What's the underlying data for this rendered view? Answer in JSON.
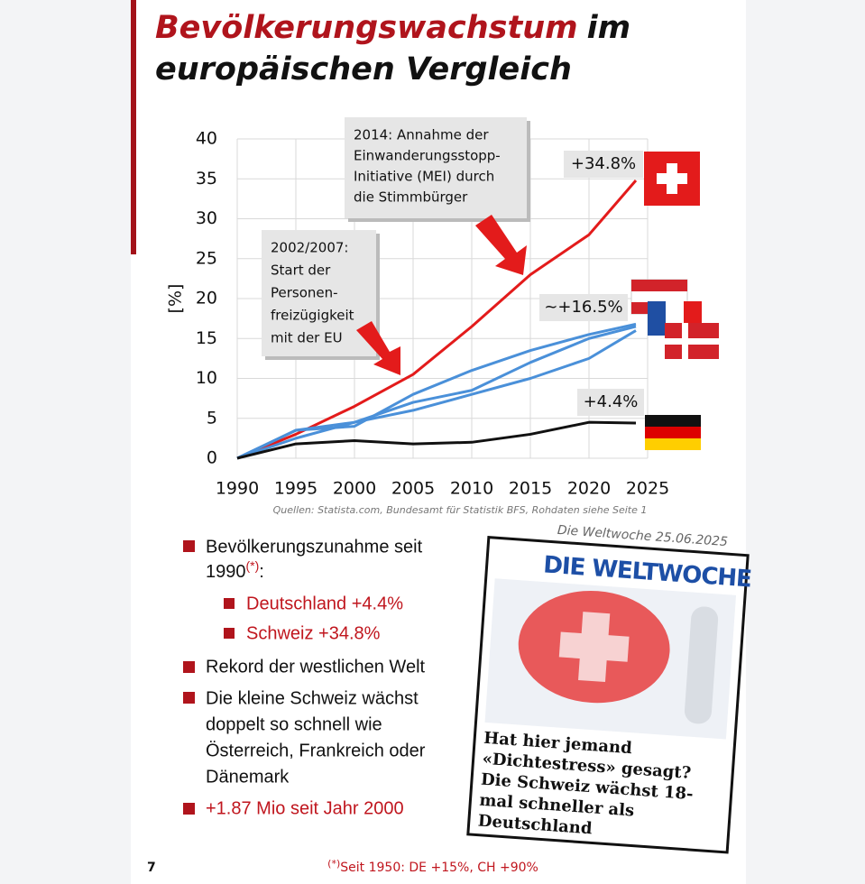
{
  "header": {
    "title_highlight": "Bevölkerungswachstum",
    "title_rest": "im",
    "title_line2": "europäischen Vergleich"
  },
  "chart_data": {
    "type": "line",
    "x": [
      1990,
      1995,
      2000,
      2005,
      2010,
      2015,
      2020,
      2024
    ],
    "series": [
      {
        "color": "#e31b1b",
        "values": [
          0,
          3,
          6.5,
          10.5,
          16.5,
          23,
          28,
          34.8
        ]
      },
      {
        "color": "#4a90d9",
        "values": [
          0,
          3.5,
          4,
          8,
          11,
          13.5,
          15.5,
          16.8
        ]
      },
      {
        "color": "#4a90d9",
        "values": [
          0,
          3.5,
          4.5,
          7,
          8.5,
          12,
          15,
          16.5
        ]
      },
      {
        "color": "#4a90d9",
        "values": [
          0,
          2.5,
          4.5,
          6,
          8,
          10,
          12.5,
          16
        ]
      },
      {
        "color": "#111111",
        "values": [
          0,
          1.8,
          2.2,
          1.8,
          2,
          3,
          4.5,
          4.4
        ]
      }
    ],
    "xlim": [
      1990,
      2025
    ],
    "xticks": [
      1990,
      1995,
      2000,
      2005,
      2010,
      2015,
      2020,
      2025
    ],
    "ylim": [
      0,
      40
    ],
    "yticks": [
      0,
      5,
      10,
      15,
      20,
      25,
      30,
      35,
      40
    ],
    "ylabel": "[%]",
    "grid": true,
    "annotations": [
      [
        "2014: Annahme der",
        "Einwanderungsstopp-",
        "Initiative (MEI) durch",
        "die Stimmbürger"
      ],
      [
        "2002/2007:",
        "Start der",
        "Personen-",
        "freizügigkeit",
        "mit der EU"
      ]
    ],
    "end_labels": [
      "+34.8%",
      "~+16.5%",
      "+4.4%"
    ],
    "source": "Quellen: Statista.com, Bundesamt für Statistik BFS, Rohdaten siehe Seite 1"
  },
  "bullets": {
    "b1_line1": "Bevölkerungszunahme seit",
    "b1_line2": "1990",
    "b1_mark": "(*)",
    "b1_colon": ":",
    "sub1": "Deutschland +4.4%",
    "sub2": "Schweiz +34.8%",
    "b2": "Rekord der westlichen Welt",
    "b3": [
      "Die kleine Schweiz wächst",
      "doppelt so schnell wie",
      "Österreich, Frankreich oder",
      "Dänemark"
    ],
    "b4": "+1.87 Mio seit Jahr 2000"
  },
  "newspaper": {
    "caption": "Die Weltwoche 25.06.2025",
    "masthead": "DIE WELTWOCHE",
    "headline": [
      "Hat hier jemand",
      "«Dichtestress» gesagt?",
      "Die Schweiz wächst 18-",
      "mal schneller als",
      "Deutschland"
    ]
  },
  "footer": {
    "page": "7",
    "note_mark": "(*)",
    "note": "Seit 1950: DE +15%, CH +90%"
  }
}
